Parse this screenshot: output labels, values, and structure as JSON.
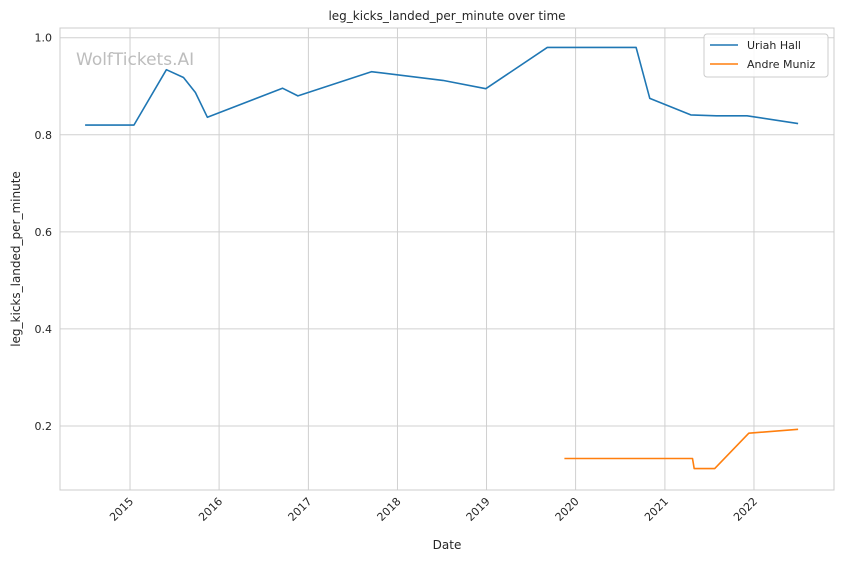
{
  "chart_data": {
    "type": "line",
    "title": "leg_kicks_landed_per_minute over time",
    "xlabel": "Date",
    "ylabel": "leg_kicks_landed_per_minute",
    "watermark": "WolfTickets.AI",
    "x_ticks": [
      "2015",
      "2016",
      "2017",
      "2018",
      "2019",
      "2020",
      "2021",
      "2022"
    ],
    "y_ticks": [
      "0.2",
      "0.4",
      "0.6",
      "0.8",
      "1.0"
    ],
    "xlim": [
      "2014-03-20",
      "2022-11-25"
    ],
    "ylim": [
      0.068,
      1.02
    ],
    "grid": true,
    "legend_position": "top-right",
    "series": [
      {
        "name": "Uriah Hall",
        "color": "#1f77b4",
        "points": [
          [
            "2014-07-01",
            0.82
          ],
          [
            "2015-01-17",
            0.82
          ],
          [
            "2015-05-30",
            0.934
          ],
          [
            "2015-08-08",
            0.918
          ],
          [
            "2015-09-26",
            0.887
          ],
          [
            "2015-11-14",
            0.836
          ],
          [
            "2016-09-17",
            0.896
          ],
          [
            "2016-11-19",
            0.88
          ],
          [
            "2017-09-16",
            0.93
          ],
          [
            "2018-07-06",
            0.912
          ],
          [
            "2018-12-29",
            0.895
          ],
          [
            "2019-09-07",
            0.98
          ],
          [
            "2020-09-05",
            0.98
          ],
          [
            "2020-10-31",
            0.875
          ],
          [
            "2021-04-17",
            0.841
          ],
          [
            "2021-07-31",
            0.839
          ],
          [
            "2021-12-04",
            0.839
          ],
          [
            "2022-07-01",
            0.823
          ]
        ]
      },
      {
        "name": "Andre Muniz",
        "color": "#ff7f0e",
        "points": [
          [
            "2019-11-16",
            0.133
          ],
          [
            "2021-04-24",
            0.133
          ],
          [
            "2021-05-01",
            0.112
          ],
          [
            "2021-07-24",
            0.112
          ],
          [
            "2021-12-11",
            0.185
          ],
          [
            "2022-07-01",
            0.193
          ]
        ]
      }
    ]
  }
}
